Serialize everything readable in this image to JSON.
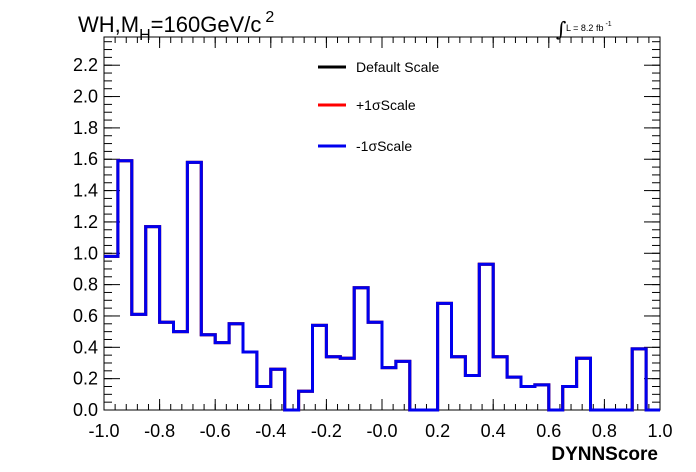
{
  "chart_data": {
    "type": "line",
    "title_main": "WH,M",
    "title_sub": "H",
    "title_rest": "=160GeV/c",
    "title_sup": "2",
    "lumi_label": "L = 8.2 fb",
    "lumi_sup": "-1",
    "xlabel": "DYNNScore",
    "ylabel": "",
    "xlim": [
      -1.0,
      1.0
    ],
    "ylim": [
      0.0,
      2.38
    ],
    "x_ticks": [
      "-1.0",
      "-0.8",
      "-0.6",
      "-0.4",
      "-0.2",
      "-0.0",
      "0.2",
      "0.4",
      "0.6",
      "0.8",
      "1.0"
    ],
    "y_ticks": [
      "0.0",
      "0.2",
      "0.4",
      "0.6",
      "0.8",
      "1.0",
      "1.2",
      "1.4",
      "1.6",
      "1.8",
      "2.0",
      "2.2"
    ],
    "grid": false,
    "legend_placement": "top-center",
    "bin_edges": [
      -1.0,
      -0.95,
      -0.9,
      -0.85,
      -0.8,
      -0.75,
      -0.7,
      -0.65,
      -0.6,
      -0.55,
      -0.5,
      -0.45,
      -0.4,
      -0.35,
      -0.3,
      -0.25,
      -0.2,
      -0.15,
      -0.1,
      -0.05,
      0.0,
      0.05,
      0.1,
      0.15,
      0.2,
      0.25,
      0.3,
      0.35,
      0.4,
      0.45,
      0.5,
      0.55,
      0.6,
      0.65,
      0.7,
      0.75,
      0.8,
      0.85,
      0.9,
      0.95,
      1.0
    ],
    "series": [
      {
        "name": "Default Scale",
        "color": "#000000",
        "values": [
          0.98,
          1.59,
          0.61,
          1.17,
          0.56,
          0.5,
          1.58,
          0.48,
          0.43,
          0.55,
          0.37,
          0.15,
          0.26,
          0.0,
          0.12,
          0.54,
          0.34,
          0.33,
          0.78,
          0.56,
          0.27,
          0.31,
          0.0,
          0.0,
          0.68,
          0.34,
          0.22,
          0.93,
          0.34,
          0.21,
          0.15,
          0.16,
          0.0,
          0.15,
          0.33,
          0.0,
          0.0,
          0.0,
          0.39,
          0.0
        ]
      },
      {
        "name": "+1σScale",
        "color": "#ff0000",
        "values": [
          0.98,
          1.59,
          0.61,
          1.17,
          0.56,
          0.5,
          1.58,
          0.48,
          0.43,
          0.55,
          0.37,
          0.15,
          0.26,
          0.0,
          0.12,
          0.54,
          0.34,
          0.33,
          0.78,
          0.56,
          0.27,
          0.31,
          0.0,
          0.0,
          0.68,
          0.34,
          0.22,
          0.93,
          0.34,
          0.21,
          0.15,
          0.16,
          0.0,
          0.15,
          0.33,
          0.0,
          0.0,
          0.0,
          0.39,
          0.0
        ]
      },
      {
        "name": "-1σScale",
        "color": "#0000ee",
        "values": [
          0.98,
          1.59,
          0.61,
          1.17,
          0.56,
          0.5,
          1.58,
          0.48,
          0.43,
          0.55,
          0.37,
          0.15,
          0.26,
          0.0,
          0.12,
          0.54,
          0.34,
          0.33,
          0.78,
          0.56,
          0.27,
          0.31,
          0.0,
          0.0,
          0.68,
          0.34,
          0.22,
          0.93,
          0.34,
          0.21,
          0.15,
          0.16,
          0.0,
          0.15,
          0.33,
          0.0,
          0.0,
          0.0,
          0.39,
          0.0
        ]
      }
    ]
  }
}
